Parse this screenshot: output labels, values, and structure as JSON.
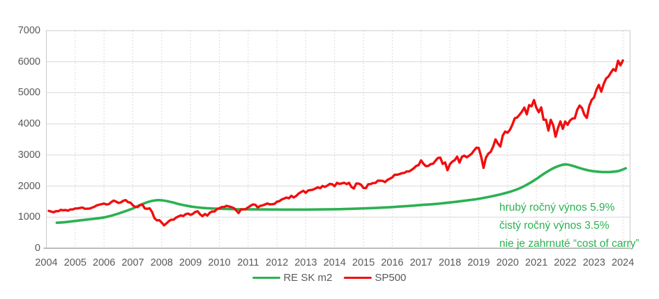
{
  "chart_data": {
    "type": "line",
    "title": "",
    "x_axis": {
      "ticks": [
        2004,
        2005,
        2006,
        2007,
        2008,
        2009,
        2010,
        2011,
        2012,
        2013,
        2014,
        2015,
        2016,
        2017,
        2018,
        2019,
        2020,
        2021,
        2022,
        2023,
        2024
      ],
      "range": [
        2004,
        2024.25
      ]
    },
    "y_axis": {
      "ticks": [
        0,
        1000,
        2000,
        3000,
        4000,
        5000,
        6000,
        7000
      ],
      "range": [
        0,
        7000
      ]
    },
    "grid": {
      "horizontal": "solid",
      "vertical": "dashed",
      "color": "#D9D9D9",
      "border_color": "#C9C9C9",
      "axis_color": "#A6A6A6"
    },
    "legend_position": "bottom-center",
    "series": [
      {
        "name": "RE SK m2",
        "color": "#2BB152",
        "points": [
          [
            2004.36,
            820
          ],
          [
            2004.6,
            835
          ],
          [
            2004.85,
            862
          ],
          [
            2005.1,
            888
          ],
          [
            2005.4,
            922
          ],
          [
            2005.7,
            952
          ],
          [
            2006.0,
            990
          ],
          [
            2006.25,
            1045
          ],
          [
            2006.5,
            1115
          ],
          [
            2006.75,
            1195
          ],
          [
            2007.0,
            1280
          ],
          [
            2007.25,
            1390
          ],
          [
            2007.5,
            1480
          ],
          [
            2007.7,
            1530
          ],
          [
            2007.9,
            1548
          ],
          [
            2008.1,
            1530
          ],
          [
            2008.35,
            1480
          ],
          [
            2008.6,
            1420
          ],
          [
            2008.85,
            1370
          ],
          [
            2009.1,
            1330
          ],
          [
            2009.4,
            1300
          ],
          [
            2009.7,
            1282
          ],
          [
            2010.0,
            1270
          ],
          [
            2010.4,
            1258
          ],
          [
            2010.8,
            1252
          ],
          [
            2011.2,
            1250
          ],
          [
            2011.6,
            1247
          ],
          [
            2012.0,
            1245
          ],
          [
            2012.5,
            1243
          ],
          [
            2013.0,
            1244
          ],
          [
            2013.5,
            1248
          ],
          [
            2014.0,
            1255
          ],
          [
            2014.5,
            1265
          ],
          [
            2015.0,
            1282
          ],
          [
            2015.5,
            1300
          ],
          [
            2016.0,
            1325
          ],
          [
            2016.5,
            1355
          ],
          [
            2017.0,
            1390
          ],
          [
            2017.5,
            1425
          ],
          [
            2018.0,
            1472
          ],
          [
            2018.5,
            1528
          ],
          [
            2019.0,
            1590
          ],
          [
            2019.5,
            1680
          ],
          [
            2019.8,
            1745
          ],
          [
            2020.1,
            1820
          ],
          [
            2020.4,
            1920
          ],
          [
            2020.7,
            2060
          ],
          [
            2021.0,
            2230
          ],
          [
            2021.3,
            2420
          ],
          [
            2021.6,
            2580
          ],
          [
            2021.85,
            2670
          ],
          [
            2022.05,
            2695
          ],
          [
            2022.3,
            2640
          ],
          [
            2022.55,
            2565
          ],
          [
            2022.8,
            2505
          ],
          [
            2023.05,
            2468
          ],
          [
            2023.3,
            2452
          ],
          [
            2023.6,
            2455
          ],
          [
            2023.85,
            2485
          ],
          [
            2024.1,
            2570
          ]
        ]
      },
      {
        "name": "SP500",
        "color": "#F20D0D",
        "x_start": 2004.0833,
        "x_step": 0.0833333,
        "values": [
          1204,
          1181,
          1157,
          1192,
          1191,
          1234,
          1220,
          1229,
          1207,
          1249,
          1248,
          1280,
          1281,
          1295,
          1311,
          1270,
          1270,
          1277,
          1304,
          1336,
          1378,
          1401,
          1418,
          1438,
          1407,
          1421,
          1482,
          1531,
          1503,
          1455,
          1474,
          1527,
          1549,
          1481,
          1468,
          1379,
          1331,
          1323,
          1386,
          1400,
          1280,
          1267,
          1283,
          1166,
          969,
          896,
          903,
          826,
          735,
          798,
          873,
          919,
          919,
          987,
          1021,
          1057,
          1036,
          1096,
          1115,
          1074,
          1104,
          1169,
          1187,
          1089,
          1031,
          1102,
          1049,
          1141,
          1183,
          1181,
          1258,
          1286,
          1327,
          1326,
          1364,
          1345,
          1321,
          1292,
          1219,
          1131,
          1253,
          1247,
          1258,
          1312,
          1366,
          1408,
          1398,
          1310,
          1362,
          1379,
          1407,
          1441,
          1412,
          1416,
          1426,
          1498,
          1515,
          1569,
          1598,
          1631,
          1606,
          1686,
          1633,
          1682,
          1757,
          1806,
          1848,
          1783,
          1859,
          1872,
          1884,
          1924,
          1960,
          1931,
          2003,
          1972,
          2018,
          2068,
          2059,
          1995,
          2105,
          2068,
          2086,
          2107,
          2063,
          2104,
          1972,
          1920,
          2079,
          2080,
          2044,
          1940,
          1932,
          2060,
          2065,
          2097,
          2099,
          2174,
          2171,
          2168,
          2126,
          2199,
          2239,
          2279,
          2364,
          2363,
          2384,
          2412,
          2423,
          2470,
          2472,
          2519,
          2575,
          2648,
          2674,
          2824,
          2714,
          2641,
          2648,
          2705,
          2718,
          2816,
          2902,
          2914,
          2712,
          2760,
          2507,
          2704,
          2785,
          2834,
          2946,
          2752,
          2942,
          2980,
          2926,
          2977,
          3038,
          3141,
          3231,
          3226,
          2954,
          2585,
          2912,
          3044,
          3100,
          3271,
          3500,
          3363,
          3270,
          3622,
          3756,
          3714,
          3811,
          3973,
          4181,
          4204,
          4298,
          4395,
          4523,
          4308,
          4605,
          4567,
          4766,
          4516,
          4374,
          4530,
          4132,
          4132,
          3785,
          4130,
          3955,
          3586,
          3872,
          4080,
          3840,
          4077,
          3970,
          4109,
          4169,
          4180,
          4450,
          4589,
          4508,
          4288,
          4194,
          4568,
          4770,
          4846,
          5096,
          5254,
          5036,
          5278,
          5460,
          5522,
          5648,
          5762,
          5705,
          6032,
          5882,
          6041
        ]
      }
    ],
    "annotation": {
      "color": "#2BB152",
      "lines": [
        "hrubý ročný výnos 5.9%",
        "čistý ročný výnos 3.5%",
        "nie je zahrnuté “cost of carry”"
      ]
    }
  }
}
